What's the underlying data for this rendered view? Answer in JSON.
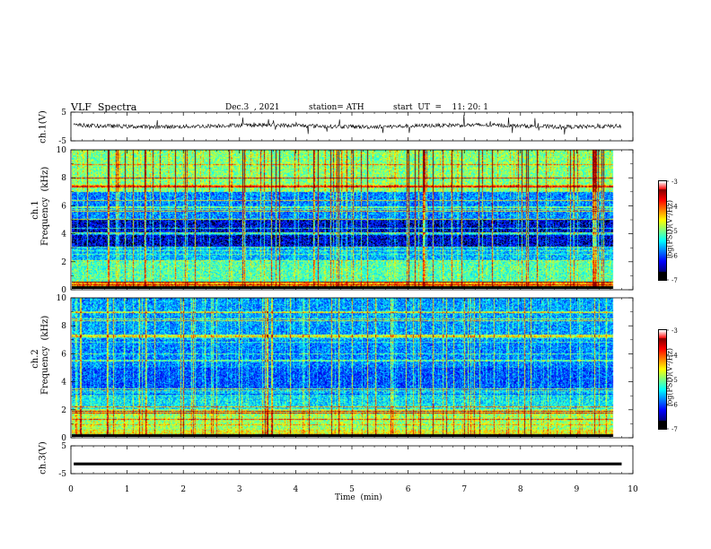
{
  "header": {
    "title": "VLF  Spectra",
    "date": "Dec.3  , 2021",
    "station": "station= ATH",
    "start_ut": "start  UT  =    11: 20: 1"
  },
  "chart_data": [
    {
      "type": "line",
      "ylabel": "ch.1(V)",
      "yticks": [
        "5",
        "-5"
      ],
      "ylim": [
        -5,
        5
      ],
      "xlim": [
        0,
        10
      ],
      "data_end_min": 9.8,
      "trace": {
        "baseline": 0.2,
        "noise": 0.7,
        "spike_rate": 0.03,
        "color": "#000000"
      }
    },
    {
      "type": "heatmap",
      "ylabel": "ch.1\nFrequency  (kHz)",
      "yticks": [
        "0",
        "2",
        "4",
        "6",
        "8",
        "10"
      ],
      "ylim": [
        0,
        10
      ],
      "xlim": [
        0,
        10
      ],
      "data_end_min": 9.8,
      "colorbar": {
        "label": "log(PSD)(V²/Hz)",
        "ticks": [
          "-3",
          "-4",
          "-5",
          "-6",
          "-7"
        ],
        "range": [
          -7,
          -3
        ]
      },
      "approx_log_psd": {
        "band_0_0.5kHz": -4.2,
        "band_0.5_2kHz": -5.2,
        "band_2_3kHz": -5.8,
        "band_3_5kHz": -6.6,
        "band_5_7kHz": -6.0,
        "band_7_10kHz": -5.0
      }
    },
    {
      "type": "heatmap",
      "ylabel": "ch.2\nFrequency  (kHz)",
      "yticks": [
        "0",
        "2",
        "4",
        "6",
        "8",
        "10"
      ],
      "ylim": [
        0,
        10
      ],
      "xlim": [
        0,
        10
      ],
      "data_end_min": 9.8,
      "colorbar": {
        "label": "log(PSD)(V²/Hz)",
        "ticks": [
          "-3",
          "-4",
          "-5",
          "-6",
          "-7"
        ],
        "range": [
          -7,
          -3
        ]
      },
      "approx_log_psd": {
        "band_0_0.5kHz": -4.6,
        "band_0.5_2kHz": -4.9,
        "band_2_3kHz": -5.6,
        "band_3_5kHz": -6.2,
        "band_5_7kHz": -6.0,
        "band_7_10kHz": -5.9
      }
    },
    {
      "type": "line",
      "ylabel": "ch.3(V)",
      "yticks": [
        "5",
        "-5"
      ],
      "ylim": [
        -5,
        5
      ],
      "xlim": [
        0,
        10
      ],
      "data_end_min": 9.8,
      "trace": {
        "baseline": -1.5,
        "noise": 0.0,
        "thickness_v": 0.5,
        "color": "#000000"
      },
      "xlabel": "Time  (min)",
      "xticks": [
        "0",
        "1",
        "2",
        "3",
        "4",
        "5",
        "6",
        "7",
        "8",
        "9",
        "10"
      ]
    }
  ]
}
